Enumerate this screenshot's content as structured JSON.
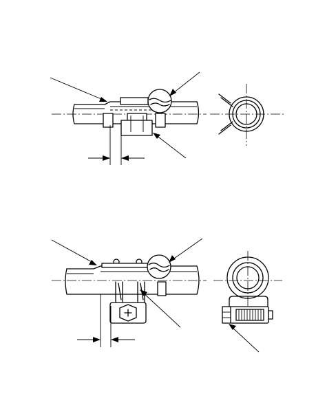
{
  "figure": {
    "panels": [
      {
        "id": "clamp-type-a",
        "callouts": [],
        "dimension_text": ""
      },
      {
        "id": "clamp-type-b",
        "callouts": [],
        "dimension_text": ""
      }
    ]
  },
  "icons": [
    "hose-icon",
    "spring-clamp-icon",
    "screw-clamp-icon",
    "phillips-screw-icon",
    "leader-arrow-icon",
    "dimension-arrow-icon"
  ]
}
